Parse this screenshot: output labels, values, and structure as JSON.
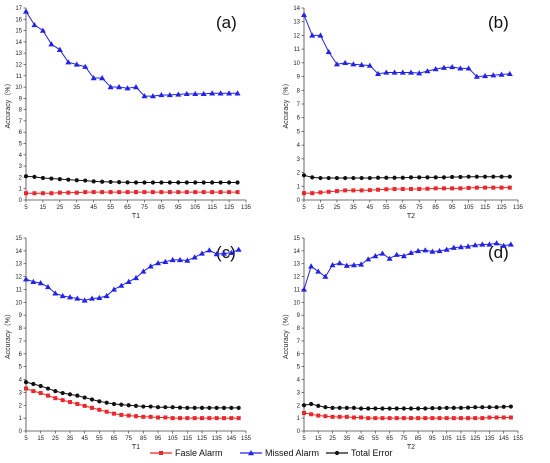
{
  "legend": [
    {
      "label": "Fasle Alarm",
      "color": "#e8282b",
      "marker": "square"
    },
    {
      "label": "Missed Alarm",
      "color": "#2323e6",
      "marker": "triangle"
    },
    {
      "label": "Total Error",
      "color": "#111111",
      "marker": "circle"
    }
  ],
  "chart_data": [
    {
      "type": "line",
      "panel_label": "(a)",
      "xlabel": "T1",
      "ylabel": "Accuracy（%）",
      "xlim": [
        5,
        135
      ],
      "xticks": [
        5,
        15,
        25,
        35,
        45,
        55,
        65,
        75,
        85,
        95,
        105,
        115,
        125,
        135
      ],
      "ylim": [
        0,
        17
      ],
      "yticks": [
        0,
        1,
        2,
        3,
        4,
        5,
        6,
        7,
        8,
        9,
        10,
        11,
        12,
        13,
        14,
        15,
        16,
        17
      ],
      "x": [
        5,
        10,
        15,
        20,
        25,
        30,
        35,
        40,
        45,
        50,
        55,
        60,
        65,
        70,
        75,
        80,
        85,
        90,
        95,
        100,
        105,
        110,
        115,
        120,
        125,
        130
      ],
      "series": [
        {
          "name": "Fasle Alarm",
          "values": [
            0.6,
            0.6,
            0.6,
            0.6,
            0.65,
            0.65,
            0.65,
            0.7,
            0.7,
            0.7,
            0.7,
            0.7,
            0.7,
            0.7,
            0.7,
            0.7,
            0.7,
            0.7,
            0.7,
            0.7,
            0.7,
            0.7,
            0.7,
            0.7,
            0.7,
            0.7
          ]
        },
        {
          "name": "Missed Alarm",
          "values": [
            16.7,
            15.5,
            15.0,
            13.8,
            13.3,
            12.2,
            12.0,
            11.8,
            10.8,
            10.8,
            10.0,
            10.0,
            9.9,
            10.0,
            9.2,
            9.2,
            9.3,
            9.3,
            9.35,
            9.4,
            9.4,
            9.4,
            9.45,
            9.45,
            9.45,
            9.45
          ]
        },
        {
          "name": "Total Error",
          "values": [
            2.1,
            2.05,
            1.95,
            1.9,
            1.85,
            1.8,
            1.75,
            1.72,
            1.65,
            1.62,
            1.6,
            1.58,
            1.56,
            1.55,
            1.55,
            1.55,
            1.55,
            1.55,
            1.55,
            1.55,
            1.55,
            1.55,
            1.55,
            1.55,
            1.55,
            1.55
          ]
        }
      ]
    },
    {
      "type": "line",
      "panel_label": "(b)",
      "xlabel": "T2",
      "ylabel": "Accuracy（%）",
      "xlim": [
        5,
        135
      ],
      "xticks": [
        5,
        15,
        25,
        35,
        45,
        55,
        65,
        75,
        85,
        95,
        105,
        115,
        125,
        135
      ],
      "ylim": [
        0,
        14
      ],
      "yticks": [
        0,
        1,
        2,
        3,
        4,
        5,
        6,
        7,
        8,
        9,
        10,
        11,
        12,
        13,
        14
      ],
      "x": [
        5,
        10,
        15,
        20,
        25,
        30,
        35,
        40,
        45,
        50,
        55,
        60,
        65,
        70,
        75,
        80,
        85,
        90,
        95,
        100,
        105,
        110,
        115,
        120,
        125,
        130
      ],
      "series": [
        {
          "name": "Fasle Alarm",
          "values": [
            0.5,
            0.5,
            0.55,
            0.6,
            0.65,
            0.7,
            0.7,
            0.7,
            0.72,
            0.75,
            0.78,
            0.8,
            0.8,
            0.8,
            0.8,
            0.82,
            0.85,
            0.85,
            0.85,
            0.85,
            0.88,
            0.9,
            0.9,
            0.9,
            0.9,
            0.9
          ]
        },
        {
          "name": "Missed Alarm",
          "values": [
            13.5,
            12.0,
            12.0,
            10.8,
            9.9,
            10.0,
            9.9,
            9.85,
            9.8,
            9.2,
            9.3,
            9.3,
            9.3,
            9.3,
            9.25,
            9.4,
            9.55,
            9.65,
            9.7,
            9.6,
            9.6,
            9.0,
            9.05,
            9.1,
            9.15,
            9.2
          ]
        },
        {
          "name": "Total Error",
          "values": [
            1.8,
            1.65,
            1.6,
            1.6,
            1.6,
            1.6,
            1.6,
            1.6,
            1.6,
            1.62,
            1.62,
            1.62,
            1.62,
            1.65,
            1.65,
            1.65,
            1.65,
            1.65,
            1.68,
            1.68,
            1.7,
            1.7,
            1.7,
            1.7,
            1.7,
            1.7
          ]
        }
      ]
    },
    {
      "type": "line",
      "panel_label": "(c)",
      "xlabel": "T1",
      "ylabel": "Accuracy（%）",
      "xlim": [
        5,
        155
      ],
      "xticks": [
        5,
        15,
        25,
        35,
        45,
        55,
        65,
        75,
        85,
        95,
        105,
        115,
        125,
        135,
        145,
        155
      ],
      "ylim": [
        0,
        15
      ],
      "yticks": [
        0,
        1,
        2,
        3,
        4,
        5,
        6,
        7,
        8,
        9,
        10,
        11,
        12,
        13,
        14,
        15
      ],
      "x": [
        5,
        10,
        15,
        20,
        25,
        30,
        35,
        40,
        45,
        50,
        55,
        60,
        65,
        70,
        75,
        80,
        85,
        90,
        95,
        100,
        105,
        110,
        115,
        120,
        125,
        130,
        135,
        140,
        145,
        150
      ],
      "series": [
        {
          "name": "Fasle Alarm",
          "values": [
            3.3,
            3.1,
            2.95,
            2.75,
            2.55,
            2.4,
            2.25,
            2.1,
            1.95,
            1.8,
            1.65,
            1.5,
            1.35,
            1.25,
            1.2,
            1.15,
            1.1,
            1.1,
            1.05,
            1.05,
            1.0,
            1.0,
            1.0,
            1.0,
            1.0,
            1.0,
            1.0,
            1.0,
            1.0,
            1.0
          ]
        },
        {
          "name": "Missed Alarm",
          "values": [
            11.8,
            11.6,
            11.5,
            11.2,
            10.7,
            10.5,
            10.4,
            10.3,
            10.15,
            10.3,
            10.35,
            10.5,
            11.0,
            11.3,
            11.6,
            11.9,
            12.4,
            12.8,
            13.05,
            13.15,
            13.3,
            13.3,
            13.25,
            13.5,
            13.8,
            14.05,
            13.75,
            13.8,
            13.85,
            14.1
          ]
        },
        {
          "name": "Total Error",
          "values": [
            3.8,
            3.65,
            3.5,
            3.3,
            3.1,
            2.95,
            2.85,
            2.75,
            2.6,
            2.45,
            2.3,
            2.2,
            2.1,
            2.05,
            2.0,
            1.95,
            1.9,
            1.9,
            1.85,
            1.85,
            1.85,
            1.82,
            1.8,
            1.8,
            1.8,
            1.8,
            1.8,
            1.8,
            1.8,
            1.8
          ]
        }
      ]
    },
    {
      "type": "line",
      "panel_label": "(d)",
      "xlabel": "T2",
      "ylabel": "Accuracy（%）",
      "xlim": [
        5,
        155
      ],
      "xticks": [
        5,
        15,
        25,
        35,
        45,
        55,
        65,
        75,
        85,
        95,
        105,
        115,
        125,
        135,
        145,
        155
      ],
      "ylim": [
        0,
        15
      ],
      "yticks": [
        0,
        1,
        2,
        3,
        4,
        5,
        6,
        7,
        8,
        9,
        10,
        11,
        12,
        13,
        14,
        15
      ],
      "x": [
        5,
        10,
        15,
        20,
        25,
        30,
        35,
        40,
        45,
        50,
        55,
        60,
        65,
        70,
        75,
        80,
        85,
        90,
        95,
        100,
        105,
        110,
        115,
        120,
        125,
        130,
        135,
        140,
        145,
        150
      ],
      "series": [
        {
          "name": "Fasle Alarm",
          "values": [
            1.4,
            1.3,
            1.2,
            1.15,
            1.1,
            1.1,
            1.1,
            1.05,
            1.05,
            1.0,
            1.0,
            1.0,
            1.0,
            1.0,
            1.0,
            1.0,
            1.0,
            1.0,
            1.0,
            1.0,
            1.0,
            1.0,
            1.0,
            1.0,
            1.0,
            1.0,
            1.05,
            1.05,
            1.05,
            1.05
          ]
        },
        {
          "name": "Missed Alarm",
          "values": [
            11.0,
            12.8,
            12.4,
            12.0,
            12.9,
            13.05,
            12.85,
            12.9,
            12.95,
            13.35,
            13.6,
            13.8,
            13.4,
            13.7,
            13.6,
            13.85,
            14.0,
            14.05,
            13.95,
            14.0,
            14.1,
            14.25,
            14.3,
            14.35,
            14.45,
            14.5,
            14.5,
            14.6,
            14.4,
            14.5
          ]
        },
        {
          "name": "Total Error",
          "values": [
            2.0,
            2.1,
            1.95,
            1.85,
            1.8,
            1.8,
            1.8,
            1.8,
            1.75,
            1.75,
            1.75,
            1.75,
            1.75,
            1.75,
            1.75,
            1.75,
            1.75,
            1.75,
            1.78,
            1.78,
            1.8,
            1.8,
            1.8,
            1.82,
            1.85,
            1.85,
            1.85,
            1.85,
            1.88,
            1.9
          ]
        }
      ]
    }
  ]
}
